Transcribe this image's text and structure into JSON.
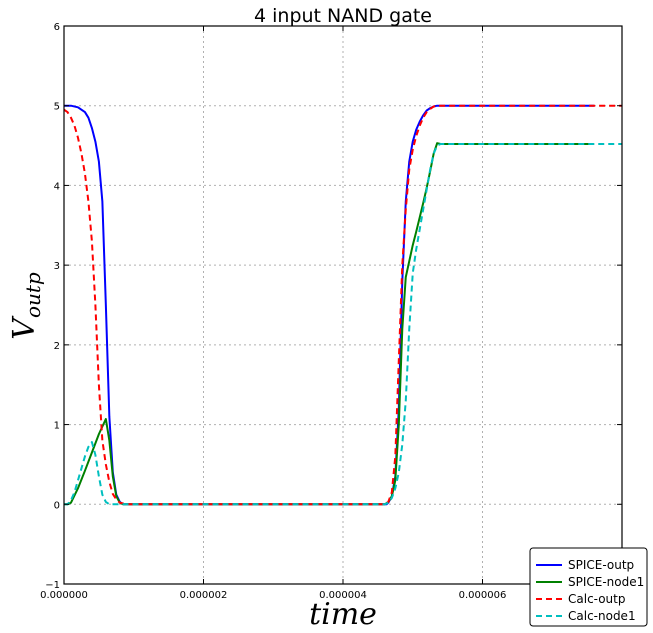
{
  "chart_data": {
    "type": "line",
    "title": "4 input NAND gate",
    "xlabel": "time",
    "ylabel_main": "V",
    "ylabel_sub": "outp",
    "xlim": [
      0,
      8e-06
    ],
    "ylim": [
      -1,
      6
    ],
    "xticks": [
      0,
      2e-06,
      4e-06,
      6e-06
    ],
    "xtick_labels": [
      "0.000000",
      "0.000002",
      "0.000004",
      "0.000006"
    ],
    "yticks": [
      -1,
      0,
      1,
      2,
      3,
      4,
      5,
      6
    ],
    "ytick_labels": [
      "−1",
      "0",
      "1",
      "2",
      "3",
      "4",
      "5",
      "6"
    ],
    "grid": true,
    "legend_position": "bottom-right",
    "series": [
      {
        "name": "SPICE-outp",
        "color": "#0000ff",
        "style": "solid",
        "x": [
          0,
          1e-07,
          2e-07,
          3e-07,
          3.5e-07,
          4e-07,
          4.5e-07,
          5e-07,
          5.5e-07,
          6e-07,
          6.5e-07,
          7e-07,
          7.5e-07,
          8e-07,
          8.5e-07,
          9e-07,
          1e-06,
          1.5e-06,
          2e-06,
          3e-06,
          4e-06,
          4.5e-06,
          4.625e-06,
          4.65e-06,
          4.7e-06,
          4.75e-06,
          4.8e-06,
          4.85e-06,
          4.9e-06,
          4.95e-06,
          5e-06,
          5.05e-06,
          5.1e-06,
          5.15e-06,
          5.2e-06,
          5.25e-06,
          5.3e-06,
          5.35e-06,
          5.4e-06,
          5.45e-06,
          5.5e-06,
          6e-06,
          7e-06,
          7.6e-06
        ],
        "y": [
          5,
          5,
          4.98,
          4.92,
          4.85,
          4.72,
          4.55,
          4.3,
          3.8,
          2.5,
          1.1,
          0.4,
          0.12,
          0.03,
          0,
          0,
          0,
          0,
          0,
          0,
          0,
          0,
          0,
          0.02,
          0.1,
          0.35,
          1.2,
          2.8,
          3.8,
          4.3,
          4.55,
          4.7,
          4.8,
          4.88,
          4.94,
          4.97,
          4.99,
          5,
          5,
          5,
          5,
          5,
          5,
          5
        ]
      },
      {
        "name": "SPICE-node1",
        "color": "#008000",
        "style": "solid",
        "x": [
          0,
          5e-08,
          1e-07,
          2e-07,
          3e-07,
          4e-07,
          5e-07,
          6e-07,
          6.5e-07,
          7e-07,
          7.5e-07,
          8e-07,
          8.5e-07,
          9e-07,
          1e-06,
          2e-06,
          3e-06,
          4e-06,
          4.6e-06,
          4.65e-06,
          4.7e-06,
          4.75e-06,
          4.8e-06,
          4.85e-06,
          4.9e-06,
          4.95e-06,
          5e-06,
          5.05e-06,
          5.1e-06,
          5.15e-06,
          5.2e-06,
          5.25e-06,
          5.3e-06,
          5.35e-06,
          5.4e-06,
          5.45e-06,
          5.5e-06,
          6e-06,
          7e-06,
          7.6e-06
        ],
        "y": [
          0,
          0,
          0.02,
          0.2,
          0.42,
          0.65,
          0.88,
          1.07,
          0.8,
          0.35,
          0.1,
          0.02,
          0,
          0,
          0,
          0,
          0,
          0,
          0,
          0.03,
          0.1,
          0.3,
          1.0,
          2.2,
          2.85,
          3.05,
          3.25,
          3.42,
          3.6,
          3.78,
          3.97,
          4.18,
          4.4,
          4.53,
          4.52,
          4.52,
          4.52,
          4.52,
          4.52,
          4.52
        ]
      },
      {
        "name": "Calc-outp",
        "color": "#ff0000",
        "style": "dashed",
        "x": [
          0,
          5e-08,
          1e-07,
          1.5e-07,
          2e-07,
          2.5e-07,
          3e-07,
          3.5e-07,
          4e-07,
          4.5e-07,
          5e-07,
          5.5e-07,
          6e-07,
          6.5e-07,
          7e-07,
          7.5e-07,
          8e-07,
          9e-07,
          1e-06,
          2e-06,
          3e-06,
          4e-06,
          4.6e-06,
          4.65e-06,
          4.7e-06,
          4.75e-06,
          4.8e-06,
          4.85e-06,
          4.9e-06,
          4.95e-06,
          5e-06,
          5.05e-06,
          5.1e-06,
          5.15e-06,
          5.2e-06,
          5.25e-06,
          5.3e-06,
          5.35e-06,
          5.4e-06,
          5.5e-06,
          6e-06,
          7e-06,
          8e-06
        ],
        "y": [
          4.95,
          4.92,
          4.85,
          4.75,
          4.6,
          4.4,
          4.15,
          3.8,
          3.3,
          2.5,
          1.5,
          0.8,
          0.5,
          0.28,
          0.13,
          0.06,
          0.02,
          0,
          0,
          0,
          0,
          0,
          0,
          0.03,
          0.15,
          0.6,
          1.8,
          3.0,
          3.7,
          4.2,
          4.45,
          4.62,
          4.75,
          4.85,
          4.92,
          4.96,
          4.99,
          5,
          5,
          5,
          5,
          5,
          5
        ]
      },
      {
        "name": "Calc-node1",
        "color": "#00bfbf",
        "style": "dashed",
        "x": [
          0,
          5e-08,
          1e-07,
          1.5e-07,
          2e-07,
          2.5e-07,
          3e-07,
          3.5e-07,
          4e-07,
          4.5e-07,
          5e-07,
          5.5e-07,
          6e-07,
          6.5e-07,
          7e-07,
          7.5e-07,
          8e-07,
          9e-07,
          1e-06,
          2e-06,
          3e-06,
          4e-06,
          4.6e-06,
          4.65e-06,
          4.7e-06,
          4.75e-06,
          4.8e-06,
          4.85e-06,
          4.9e-06,
          4.95e-06,
          5e-06,
          5.05e-06,
          5.1e-06,
          5.15e-06,
          5.2e-06,
          5.25e-06,
          5.3e-06,
          5.35e-06,
          5.4e-06,
          5.45e-06,
          5.5e-06,
          6e-06,
          7e-06,
          8e-06
        ],
        "y": [
          0,
          0,
          0.05,
          0.15,
          0.3,
          0.45,
          0.6,
          0.72,
          0.78,
          0.62,
          0.35,
          0.12,
          0.03,
          0,
          0,
          0,
          0,
          0,
          0,
          0,
          0,
          0,
          0,
          0.02,
          0.08,
          0.2,
          0.4,
          0.75,
          1.3,
          2.2,
          2.9,
          3.2,
          3.45,
          3.7,
          3.95,
          4.2,
          4.4,
          4.5,
          4.52,
          4.52,
          4.52,
          4.52,
          4.52,
          4.52
        ]
      }
    ]
  }
}
